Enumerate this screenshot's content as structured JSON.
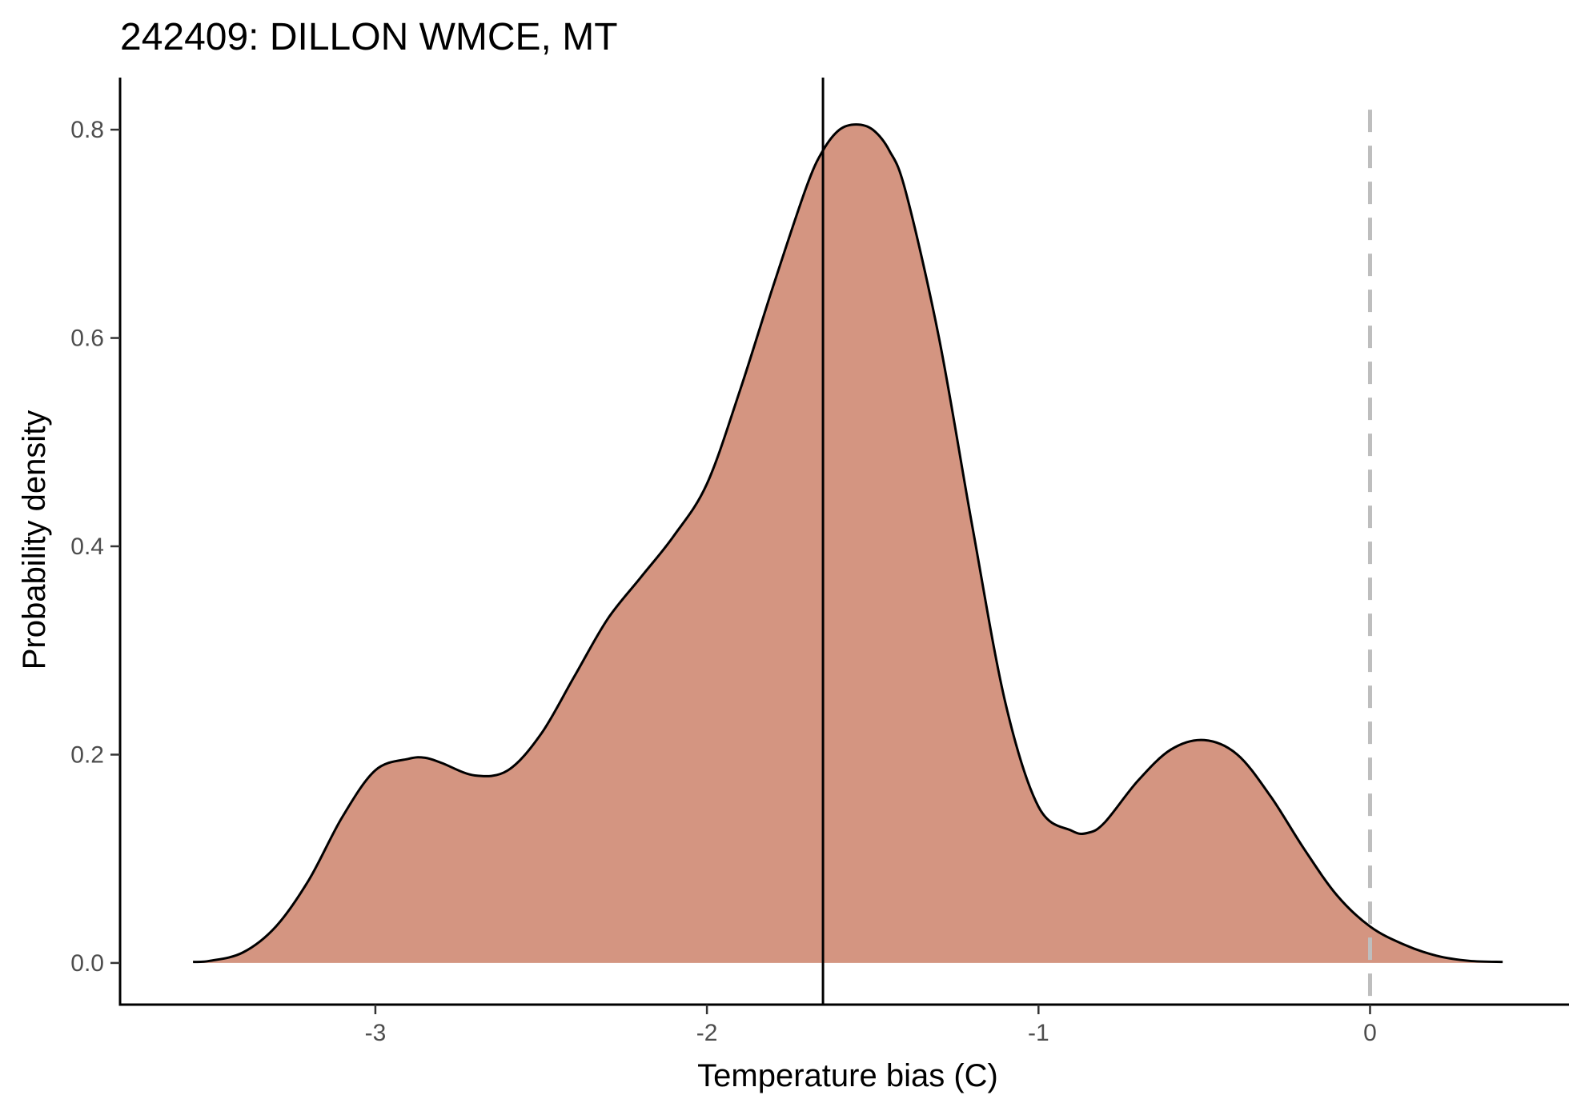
{
  "chart_data": {
    "type": "area",
    "title": "242409: DILLON WMCE, MT",
    "xlabel": "Temperature bias (C)",
    "ylabel": "Probability density",
    "xlim": [
      -3.77,
      0.6
    ],
    "ylim": [
      -0.04,
      0.85
    ],
    "x_ticks": [
      -3,
      -2,
      -1,
      0
    ],
    "x_tick_labels": [
      "-3",
      "-2",
      "-1",
      "0"
    ],
    "y_ticks": [
      0.0,
      0.2,
      0.4,
      0.6,
      0.8
    ],
    "y_tick_labels": [
      "0.0",
      "0.2",
      "0.4",
      "0.6",
      "0.8"
    ],
    "fill_color": "#d49581",
    "line_color": "#000000",
    "series": [
      {
        "x": [
          -3.55,
          -3.5,
          -3.4,
          -3.3,
          -3.2,
          -3.1,
          -3.0,
          -2.9,
          -2.85,
          -2.8,
          -2.7,
          -2.6,
          -2.5,
          -2.4,
          -2.3,
          -2.2,
          -2.1,
          -2.0,
          -1.9,
          -1.8,
          -1.7,
          -1.65,
          -1.6,
          -1.55,
          -1.5,
          -1.45,
          -1.4,
          -1.3,
          -1.2,
          -1.1,
          -1.0,
          -0.9,
          -0.85,
          -0.8,
          -0.7,
          -0.6,
          -0.5,
          -0.4,
          -0.3,
          -0.2,
          -0.1,
          0.0,
          0.1,
          0.2,
          0.3,
          0.4
        ],
        "y": [
          0.001,
          0.002,
          0.01,
          0.035,
          0.08,
          0.14,
          0.185,
          0.196,
          0.197,
          0.192,
          0.18,
          0.185,
          0.22,
          0.275,
          0.33,
          0.37,
          0.41,
          0.46,
          0.55,
          0.65,
          0.745,
          0.78,
          0.8,
          0.805,
          0.8,
          0.78,
          0.74,
          0.6,
          0.42,
          0.25,
          0.15,
          0.127,
          0.125,
          0.135,
          0.175,
          0.205,
          0.214,
          0.2,
          0.16,
          0.11,
          0.065,
          0.035,
          0.018,
          0.007,
          0.002,
          0.001
        ]
      }
    ],
    "vlines": [
      {
        "x": -1.65,
        "style": "solid",
        "color": "#000000"
      },
      {
        "x": 0.0,
        "style": "dashed",
        "color": "#bebebe"
      }
    ],
    "grid": false,
    "legend": "none"
  }
}
